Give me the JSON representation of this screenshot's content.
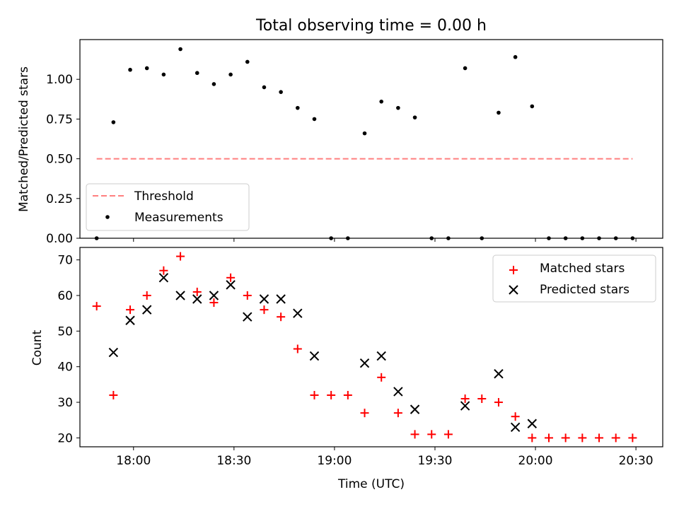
{
  "chart_data": [
    {
      "type": "scatter",
      "title": "Total observing time = 0.00 h",
      "xlabel": "",
      "ylabel": "Matched/Predicted stars",
      "ylim": [
        0,
        1.25
      ],
      "xlim": [
        "17:44",
        "20:38"
      ],
      "y_ticks": [
        "0.00",
        "0.25",
        "0.50",
        "0.75",
        "1.00"
      ],
      "x_ticks": [
        "18:00",
        "18:30",
        "19:00",
        "19:30",
        "20:00",
        "20:30"
      ],
      "tick_labels_visible": false,
      "legend_position": "lower-left",
      "grid": false,
      "threshold": {
        "name": "Threshold",
        "color": "#ff7f7f",
        "style": "dashed",
        "x": [
          "17:49",
          "20:29"
        ],
        "y": 0.5
      },
      "series": [
        {
          "name": "Measurements",
          "marker": "dot",
          "color": "#000000",
          "x": [
            "17:49",
            "17:54",
            "17:59",
            "18:04",
            "18:09",
            "18:14",
            "18:19",
            "18:24",
            "18:29",
            "18:34",
            "18:39",
            "18:44",
            "18:49",
            "18:54",
            "18:59",
            "19:04",
            "19:09",
            "19:14",
            "19:19",
            "19:24",
            "19:29",
            "19:34",
            "19:39",
            "19:44",
            "19:49",
            "19:54",
            "19:59",
            "20:04",
            "20:09",
            "20:14",
            "20:19",
            "20:24",
            "20:29"
          ],
          "y": [
            0.0,
            0.73,
            1.06,
            1.07,
            1.03,
            1.19,
            1.04,
            0.97,
            1.03,
            1.11,
            0.95,
            0.92,
            0.82,
            0.75,
            0.0,
            0.0,
            0.66,
            0.86,
            0.82,
            0.76,
            0.0,
            0.0,
            1.07,
            0.0,
            0.79,
            1.14,
            0.83,
            0.0,
            0.0,
            0.0,
            0.0,
            0.0,
            0.0
          ]
        }
      ]
    },
    {
      "type": "scatter",
      "title": "",
      "xlabel": "Time (UTC)",
      "ylabel": "Count",
      "ylim": [
        17.5,
        73.5
      ],
      "xlim": [
        "17:44",
        "20:38"
      ],
      "y_ticks": [
        "20",
        "30",
        "40",
        "50",
        "60",
        "70"
      ],
      "x_ticks": [
        "18:00",
        "18:30",
        "19:00",
        "19:30",
        "20:00",
        "20:30"
      ],
      "legend_position": "top-right",
      "grid": false,
      "series": [
        {
          "name": "Matched stars",
          "marker": "plus",
          "color": "#ff0000",
          "x": [
            "17:49",
            "17:54",
            "17:59",
            "18:04",
            "18:09",
            "18:14",
            "18:19",
            "18:24",
            "18:29",
            "18:34",
            "18:39",
            "18:44",
            "18:49",
            "18:54",
            "18:59",
            "19:04",
            "19:09",
            "19:14",
            "19:19",
            "19:24",
            "19:29",
            "19:34",
            "19:39",
            "19:44",
            "19:49",
            "19:54",
            "19:59",
            "20:04",
            "20:09",
            "20:14",
            "20:19",
            "20:24",
            "20:29"
          ],
          "y": [
            57,
            32,
            56,
            60,
            67,
            71,
            61,
            58,
            65,
            60,
            56,
            54,
            45,
            32,
            32,
            32,
            27,
            37,
            27,
            21,
            21,
            21,
            31,
            31,
            30,
            26,
            20,
            20,
            20,
            20,
            20,
            20,
            20
          ]
        },
        {
          "name": "Predicted stars",
          "marker": "x",
          "color": "#000000",
          "x": [
            "17:54",
            "17:59",
            "18:04",
            "18:09",
            "18:14",
            "18:19",
            "18:24",
            "18:29",
            "18:34",
            "18:39",
            "18:44",
            "18:49",
            "18:54",
            "19:09",
            "19:14",
            "19:19",
            "19:24",
            "19:39",
            "19:49",
            "19:54",
            "19:59"
          ],
          "y": [
            44,
            53,
            56,
            65,
            60,
            59,
            60,
            63,
            54,
            59,
            59,
            55,
            43,
            41,
            43,
            33,
            28,
            29,
            38,
            23,
            24
          ]
        }
      ]
    }
  ]
}
